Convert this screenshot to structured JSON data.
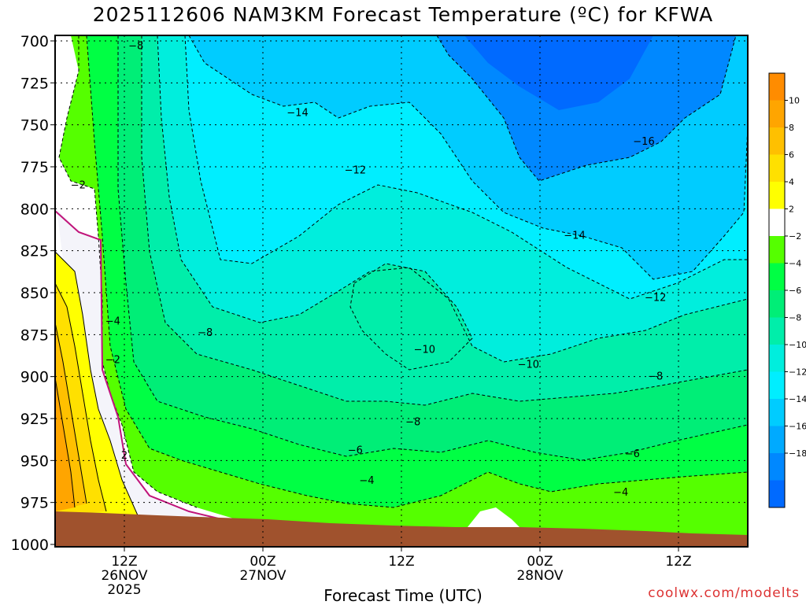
{
  "title": "2025112606 NAM3KM Forecast Temperature (ºC) for KFWA",
  "credit": "coolwx.com/modelts",
  "chart_data": {
    "type": "heatmap",
    "title": "2025112606 NAM3KM Forecast Temperature (ºC) for KFWA",
    "xlabel": "Forecast Time (UTC)",
    "ylabel": "",
    "y_ticks": [
      "700",
      "725",
      "750",
      "775",
      "800",
      "825",
      "850",
      "875",
      "900",
      "925",
      "950",
      "975",
      "1000"
    ],
    "y_values": [
      700,
      725,
      750,
      775,
      800,
      825,
      850,
      875,
      900,
      925,
      950,
      975,
      1000
    ],
    "ylim": [
      700,
      1000
    ],
    "x_ticks": [
      {
        "time": "12Z",
        "day": "26NOV",
        "year": "2025",
        "hour": 12
      },
      {
        "time": "00Z",
        "day": "27NOV",
        "year": "",
        "hour": 24
      },
      {
        "time": "12Z",
        "day": "",
        "year": "",
        "hour": 36
      },
      {
        "time": "00Z",
        "day": "28NOV",
        "year": "",
        "hour": 48
      },
      {
        "time": "12Z",
        "day": "",
        "year": "",
        "hour": 60
      }
    ],
    "xlim": [
      6,
      66
    ],
    "grid": true,
    "colorbar": {
      "labels": [
        "10",
        "8",
        "6",
        "4",
        "2",
        "-2",
        "-4",
        "-6",
        "-8",
        "-10",
        "-12",
        "-14",
        "-16",
        "-18"
      ],
      "colors": [
        "#ff8c00",
        "#ffa500",
        "#ffc000",
        "#ffe000",
        "#ffff00",
        "#ffffff",
        "#55ff00",
        "#00ff44",
        "#00ee77",
        "#00eeaa",
        "#00eedd",
        "#00eeff",
        "#00ccff",
        "#00aaff",
        "#0088ff",
        "#006aff"
      ]
    },
    "contour_labels": [
      {
        "text": "-8",
        "hour": 13,
        "p": 703
      },
      {
        "text": "-14",
        "hour": 27,
        "p": 743
      },
      {
        "text": "-16",
        "hour": 57,
        "p": 760
      },
      {
        "text": "-12",
        "hour": 32,
        "p": 777
      },
      {
        "text": "-2",
        "hour": 8,
        "p": 786
      },
      {
        "text": "-14",
        "hour": 51,
        "p": 816
      },
      {
        "text": "-12",
        "hour": 58,
        "p": 853
      },
      {
        "text": "-4",
        "hour": 11,
        "p": 867
      },
      {
        "text": "-8",
        "hour": 19,
        "p": 874
      },
      {
        "text": "-10",
        "hour": 38,
        "p": 884
      },
      {
        "text": "-2",
        "hour": 11,
        "p": 890
      },
      {
        "text": "-10",
        "hour": 47,
        "p": 893
      },
      {
        "text": "-8",
        "hour": 58,
        "p": 900
      },
      {
        "text": "-8",
        "hour": 37,
        "p": 927
      },
      {
        "text": "-6",
        "hour": 32,
        "p": 944
      },
      {
        "text": "2",
        "hour": 12,
        "p": 947
      },
      {
        "text": "-6",
        "hour": 56,
        "p": 946
      },
      {
        "text": "-4",
        "hour": 33,
        "p": 962
      },
      {
        "text": "-4",
        "hour": 55,
        "p": 969
      }
    ]
  }
}
